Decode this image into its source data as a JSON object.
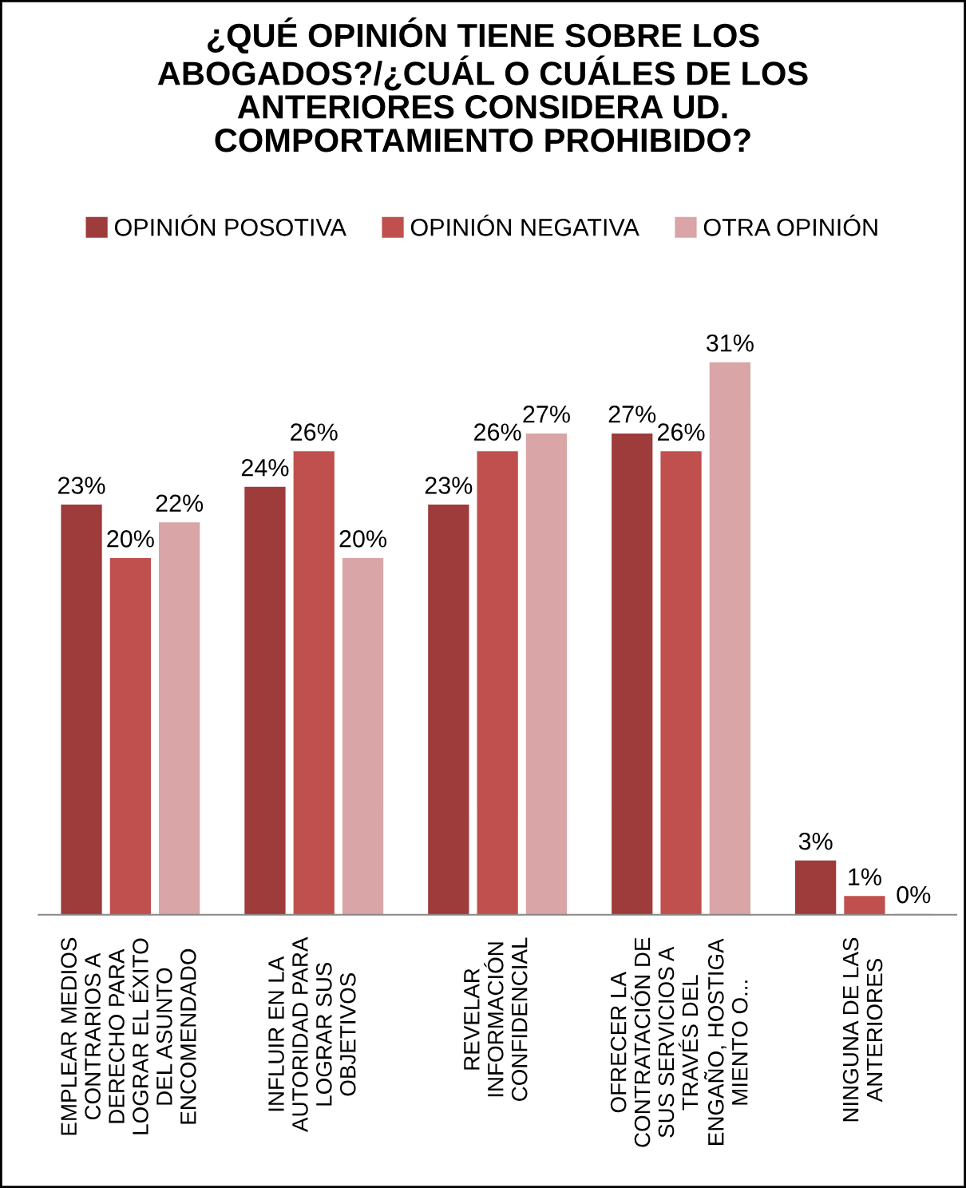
{
  "chart_data": {
    "type": "bar",
    "title": "¿QUÉ OPINIÓN TIENE SOBRE LOS\nABOGADOS?/¿CUÁL O CUÁLES DE LOS\nANTERIORES CONSIDERA UD.\nCOMPORTAMIENTO PROHIBIDO?",
    "categories": [
      "EMPLEAR MEDIOS\nCONTRARIOS A\nDERECHO PARA\nLOGRAR EL ÉXITO\nDEL ASUNTO\nENCOMENDADO",
      "INFLUIR EN LA\nAUTORIDAD PARA\nLOGRAR SUS\nOBJETIVOS",
      "REVELAR\nINFORMACIÓN\nCONFIDENCIAL",
      "OFRECER LA\nCONTRATACIÓN DE\nSUS SERVICIOS A\nTRAVÉS DEL\nENGAÑO, HOSTIGA\nMIENTO O...",
      "NINGUNA DE LAS\nANTERIORES"
    ],
    "series": [
      {
        "name": "OPINIÓN POSOTIVA",
        "color": "#9e3b3b",
        "values": [
          23,
          24,
          23,
          27,
          3
        ],
        "value_labels": [
          "23%",
          "24%",
          "23%",
          "27%",
          "3%"
        ]
      },
      {
        "name": "OPINIÓN NEGATIVA",
        "color": "#c0504d",
        "values": [
          20,
          26,
          26,
          26,
          1
        ],
        "value_labels": [
          "20%",
          "26%",
          "26%",
          "26%",
          "1%"
        ]
      },
      {
        "name": "OTRA OPINIÓN",
        "color": "#d9a5a6",
        "values": [
          22,
          20,
          27,
          31,
          0
        ],
        "value_labels": [
          "22%",
          "20%",
          "27%",
          "31%",
          "0%"
        ]
      }
    ],
    "legend": "top",
    "grid": false
  }
}
